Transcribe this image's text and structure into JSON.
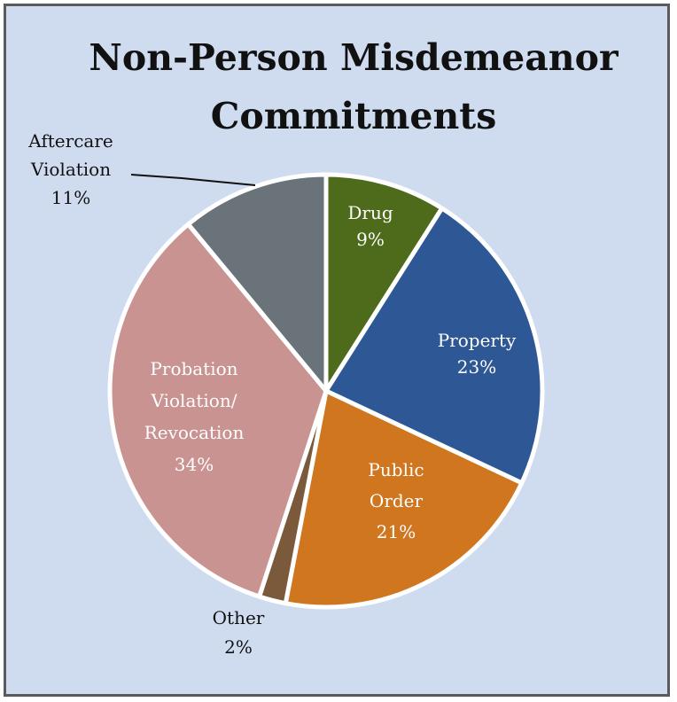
{
  "chart_data": {
    "type": "pie",
    "title": [
      "Non-Person Misdemeanor",
      "Commitments"
    ],
    "start_angle_deg": 0,
    "direction": "clockwise",
    "slices": [
      {
        "label": [
          "Drug",
          "9%"
        ],
        "value": 9,
        "color": "#4d6b1b",
        "label_color": "#ffffff",
        "label_pos": "inside"
      },
      {
        "label": [
          "Property",
          "23%"
        ],
        "value": 23,
        "color": "#2e5795",
        "label_color": "#ffffff",
        "label_pos": "inside"
      },
      {
        "label": [
          "Public",
          "Order",
          "21%"
        ],
        "value": 21,
        "color": "#cf761f",
        "label_color": "#ffffff",
        "label_pos": "inside"
      },
      {
        "label": [
          "Other",
          "2%"
        ],
        "value": 2,
        "color": "#7a5a3a",
        "label_color": "#111111",
        "label_pos": "outside"
      },
      {
        "label": [
          "Probation",
          "Violation/",
          "Revocation",
          "34%"
        ],
        "value": 34,
        "color": "#c89391",
        "label_color": "#ffffff",
        "label_pos": "inside"
      },
      {
        "label": [
          "Aftercare",
          "Violation",
          "11%"
        ],
        "value": 11,
        "color": "#6a737a",
        "label_color": "#111111",
        "label_pos": "outside"
      }
    ]
  }
}
